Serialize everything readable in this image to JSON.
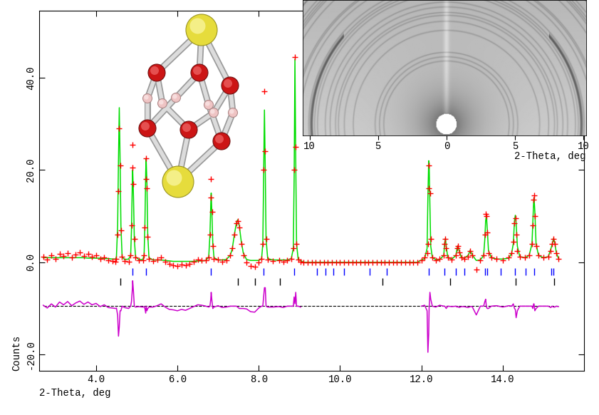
{
  "chart_data": {
    "type": "rietveld",
    "x_label": "2-Theta, deg",
    "y_label": "Counts",
    "xlim": [
      2.6,
      16.0
    ],
    "ylim": [
      -23.5,
      54.5
    ],
    "xticks": [
      {
        "value": 4,
        "label": "4.0"
      },
      {
        "value": 6,
        "label": "6.0"
      },
      {
        "value": 8,
        "label": "8.0"
      },
      {
        "value": 10,
        "label": "10.0"
      },
      {
        "value": 12,
        "label": "12.0"
      },
      {
        "value": 14,
        "label": "14.0"
      }
    ],
    "yticks": [
      {
        "value": -20,
        "label": "-20.0"
      },
      {
        "value": 0,
        "label": "0.0"
      },
      {
        "value": 20,
        "label": "20.0"
      },
      {
        "value": 40,
        "label": "40.0"
      }
    ],
    "x": [
      2.7,
      2.8,
      2.9,
      3.0,
      3.1,
      3.2,
      3.3,
      3.4,
      3.5,
      3.6,
      3.7,
      3.8,
      3.9,
      4.0,
      4.1,
      4.2,
      4.3,
      4.4,
      4.48,
      4.5,
      4.53,
      4.55,
      4.57,
      4.59,
      4.61,
      4.64,
      4.7,
      4.8,
      4.85,
      4.87,
      4.89,
      4.9,
      4.92,
      4.94,
      4.97,
      5.05,
      5.15,
      5.18,
      5.2,
      5.22,
      5.23,
      5.25,
      5.27,
      5.3,
      5.4,
      5.5,
      5.6,
      5.7,
      5.8,
      5.9,
      6.0,
      6.1,
      6.2,
      6.3,
      6.4,
      6.5,
      6.6,
      6.7,
      6.77,
      6.8,
      6.82,
      6.83,
      6.85,
      6.87,
      6.9,
      7.0,
      7.1,
      7.2,
      7.3,
      7.35,
      7.4,
      7.45,
      7.48,
      7.52,
      7.57,
      7.62,
      7.7,
      7.8,
      7.9,
      8.0,
      8.07,
      8.1,
      8.12,
      8.14,
      8.16,
      8.18,
      8.22,
      8.35,
      8.5,
      8.6,
      8.7,
      8.8,
      8.85,
      8.87,
      8.89,
      8.91,
      8.93,
      8.97,
      9.03,
      9.1,
      9.2,
      9.3,
      9.4,
      9.5,
      9.6,
      9.7,
      9.8,
      9.9,
      10.0,
      10.1,
      10.2,
      10.3,
      10.4,
      10.5,
      10.6,
      10.7,
      10.8,
      10.9,
      11.0,
      11.1,
      11.2,
      11.3,
      11.4,
      11.5,
      11.6,
      11.7,
      11.8,
      11.9,
      12.0,
      12.08,
      12.14,
      12.16,
      12.18,
      12.19,
      12.21,
      12.23,
      12.27,
      12.35,
      12.45,
      12.55,
      12.57,
      12.59,
      12.61,
      12.65,
      12.75,
      12.85,
      12.88,
      12.9,
      12.93,
      12.98,
      13.05,
      13.15,
      13.2,
      13.25,
      13.35,
      13.45,
      13.53,
      13.56,
      13.58,
      13.6,
      13.62,
      13.65,
      13.72,
      13.85,
      14.0,
      14.15,
      14.22,
      14.26,
      14.29,
      14.31,
      14.33,
      14.36,
      14.42,
      14.55,
      14.65,
      14.72,
      14.74,
      14.76,
      14.77,
      14.79,
      14.82,
      14.88,
      15.0,
      15.12,
      15.18,
      15.22,
      15.25,
      15.28,
      15.32,
      15.37
    ],
    "series": [
      {
        "type": "scatter",
        "color": "#ff0000",
        "marker": "plus",
        "values": [
          1.2,
          0.6,
          1.5,
          0.8,
          1.9,
          1.3,
          2.0,
          1.1,
          1.7,
          2.1,
          1.4,
          1.8,
          1.2,
          1.5,
          0.8,
          1.1,
          0.5,
          0.3,
          0.2,
          0.8,
          6.0,
          15.5,
          29.0,
          21.0,
          7.0,
          1.2,
          0.3,
          0.2,
          1.5,
          8.0,
          20.5,
          25.5,
          17.0,
          5.0,
          1.0,
          0.5,
          0.4,
          1.5,
          7.5,
          18.0,
          22.5,
          16.0,
          5.5,
          0.8,
          0.3,
          0.6,
          1.0,
          0.2,
          -0.4,
          -0.6,
          -0.8,
          -0.5,
          -0.7,
          -0.3,
          0.1,
          0.6,
          0.5,
          0.4,
          1.0,
          6.0,
          14.0,
          18.0,
          11.0,
          3.5,
          0.8,
          0.6,
          0.2,
          0.4,
          1.5,
          3.0,
          6.0,
          8.5,
          9.0,
          7.5,
          4.0,
          1.5,
          0.0,
          -0.8,
          -0.9,
          0.0,
          0.8,
          4.0,
          20.0,
          37.0,
          24.0,
          5.0,
          0.6,
          0.3,
          0.4,
          0.2,
          0.5,
          0.8,
          3.0,
          20.0,
          44.5,
          25.0,
          4.0,
          0.6,
          0.2,
          0.0,
          0.0,
          0.0,
          0.0,
          0.0,
          0.0,
          0.0,
          0.0,
          0.0,
          0.0,
          0.0,
          0.0,
          0.0,
          0.0,
          0.0,
          0.0,
          0.0,
          0.0,
          0.0,
          0.0,
          0.0,
          0.0,
          0.0,
          0.0,
          0.0,
          0.0,
          0.0,
          0.0,
          0.0,
          0.5,
          1.0,
          2.0,
          4.0,
          16.0,
          21.0,
          15.0,
          5.0,
          1.0,
          0.4,
          0.8,
          1.5,
          4.0,
          5.0,
          3.0,
          1.0,
          0.6,
          1.5,
          3.0,
          3.5,
          2.2,
          1.0,
          0.8,
          1.2,
          2.5,
          1.5,
          -1.5,
          0.5,
          1.5,
          6.0,
          10.5,
          10.0,
          6.5,
          2.0,
          1.0,
          0.8,
          0.5,
          1.0,
          2.0,
          4.5,
          8.5,
          9.5,
          6.0,
          2.5,
          1.2,
          1.0,
          1.5,
          4.0,
          8.0,
          13.5,
          14.5,
          10.0,
          3.5,
          1.5,
          1.0,
          1.2,
          2.5,
          4.0,
          5.0,
          4.0,
          2.0,
          0.8
        ]
      },
      {
        "type": "line",
        "color": "#00dd00",
        "line_style": "solid",
        "values": [
          1.0,
          1.0,
          1.0,
          1.0,
          1.0,
          1.0,
          1.0,
          1.0,
          1.0,
          1.0,
          1.0,
          0.9,
          0.9,
          0.9,
          0.9,
          0.8,
          0.8,
          0.7,
          0.7,
          1.2,
          8.0,
          22.0,
          33.5,
          22.0,
          8.0,
          1.2,
          0.6,
          0.7,
          1.5,
          7.0,
          17.0,
          20.0,
          14.0,
          5.0,
          1.2,
          0.6,
          0.6,
          1.6,
          8.0,
          19.5,
          22.5,
          17.0,
          6.0,
          1.0,
          0.5,
          0.5,
          0.5,
          0.4,
          0.3,
          0.2,
          0.2,
          0.2,
          0.2,
          0.2,
          0.2,
          0.3,
          0.3,
          0.4,
          1.2,
          6.0,
          12.5,
          15.0,
          10.0,
          4.0,
          1.0,
          0.5,
          0.5,
          0.6,
          1.5,
          3.0,
          6.0,
          8.5,
          9.2,
          8.0,
          4.5,
          2.0,
          0.6,
          0.4,
          0.4,
          0.4,
          0.8,
          4.0,
          18.0,
          33.0,
          20.0,
          5.0,
          0.8,
          0.5,
          0.5,
          0.5,
          0.5,
          0.8,
          3.0,
          18.0,
          44.0,
          22.0,
          4.0,
          0.6,
          0.4,
          0.0,
          0.0,
          0.0,
          0.0,
          0.0,
          0.0,
          0.0,
          0.0,
          0.0,
          0.0,
          0.0,
          0.0,
          0.0,
          0.0,
          0.0,
          0.0,
          0.0,
          0.0,
          0.0,
          0.0,
          0.0,
          0.0,
          0.0,
          0.0,
          0.0,
          0.0,
          0.0,
          0.0,
          0.0,
          0.5,
          0.8,
          3.0,
          14.0,
          22.0,
          21.5,
          12.0,
          3.5,
          1.0,
          0.6,
          0.6,
          1.5,
          4.0,
          5.2,
          3.5,
          1.0,
          0.7,
          1.5,
          3.2,
          3.6,
          2.5,
          1.1,
          0.9,
          1.5,
          2.6,
          1.6,
          0.4,
          0.5,
          1.5,
          5.0,
          9.0,
          10.2,
          7.0,
          2.5,
          1.0,
          0.7,
          0.7,
          0.9,
          2.0,
          4.0,
          9.0,
          10.2,
          8.5,
          3.5,
          1.2,
          1.0,
          1.5,
          4.0,
          8.5,
          13.0,
          14.0,
          11.0,
          4.0,
          1.5,
          1.0,
          1.2,
          2.8,
          4.0,
          5.2,
          4.2,
          2.0,
          0.9
        ]
      },
      {
        "type": "line",
        "color": "#cc00cc",
        "line_style": "solid",
        "values": [
          -9.3,
          -9.9,
          -9.0,
          -9.7,
          -8.6,
          -9.2,
          -8.5,
          -9.4,
          -8.8,
          -8.4,
          -9.1,
          -8.6,
          -9.2,
          -8.9,
          -9.6,
          -9.2,
          -9.8,
          -9.9,
          -10.0,
          -9.9,
          -11.5,
          -16.0,
          -14.0,
          -10.5,
          -10.5,
          -9.5,
          -9.8,
          -10.0,
          -9.5,
          -8.5,
          -6.0,
          -4.0,
          -6.5,
          -9.5,
          -9.7,
          -9.6,
          -9.7,
          -9.6,
          -10.0,
          -11.0,
          -9.5,
          -10.5,
          -10.0,
          -9.7,
          -9.7,
          -9.4,
          -9.0,
          -9.7,
          -10.2,
          -10.3,
          -10.5,
          -10.2,
          -10.4,
          -10.0,
          -9.6,
          -9.2,
          -9.3,
          -9.5,
          -9.7,
          -9.5,
          -8.0,
          -6.5,
          -8.5,
          -10.0,
          -9.7,
          -9.4,
          -9.8,
          -9.7,
          -9.5,
          -9.5,
          -9.5,
          -9.5,
          -9.7,
          -10.0,
          -10.0,
          -10.0,
          -10.1,
          -10.7,
          -10.8,
          -9.9,
          -9.5,
          -9.5,
          -7.5,
          -5.5,
          -5.5,
          -9.5,
          -9.7,
          -9.7,
          -9.6,
          -9.8,
          -9.5,
          -9.5,
          -9.5,
          -7.5,
          -9.0,
          -6.5,
          -9.5,
          -9.5,
          -9.7,
          null,
          null,
          null,
          null,
          null,
          null,
          null,
          null,
          null,
          null,
          null,
          null,
          null,
          null,
          null,
          null,
          null,
          null,
          null,
          null,
          null,
          null,
          null,
          null,
          null,
          null,
          null,
          null,
          null,
          -9.5,
          -9.3,
          -10.5,
          -19.5,
          -15.5,
          -10.0,
          -6.5,
          -8.0,
          -9.5,
          -9.7,
          -9.3,
          -9.5,
          -9.5,
          -9.7,
          -10.0,
          -9.5,
          -9.6,
          -9.5,
          -9.7,
          -9.6,
          -9.8,
          -9.6,
          -9.6,
          -9.8,
          -9.6,
          -9.6,
          -11.4,
          -9.5,
          -9.5,
          -8.5,
          -8.0,
          -9.7,
          -10.0,
          -10.0,
          -9.5,
          -9.4,
          -9.7,
          -9.4,
          -9.5,
          -9.0,
          -10.0,
          -10.2,
          -12.0,
          -10.5,
          -9.5,
          -9.5,
          -9.5,
          -9.5,
          -10.0,
          -9.0,
          -9.0,
          -10.5,
          -10.0,
          -9.5,
          -9.5,
          -9.5,
          -9.8,
          -9.5,
          -9.7,
          -9.7,
          -9.5,
          -9.6
        ]
      }
    ],
    "baseline": {
      "value": -9.5,
      "color": "#000000",
      "line_style": "dashed"
    },
    "reflections": [
      {
        "color": "#0000ff",
        "y": -2.0,
        "x": [
          4.9,
          5.22,
          6.82,
          8.12,
          8.87,
          9.44,
          9.65,
          9.83,
          10.09,
          10.73,
          11.15,
          12.19,
          12.57,
          12.85,
          13.06,
          13.57,
          13.62,
          13.95,
          14.3,
          14.56,
          14.77,
          15.2,
          15.25
        ]
      },
      {
        "color": "#000000",
        "y": -4.2,
        "x": [
          4.59,
          7.48,
          7.91,
          8.52,
          11.04,
          12.7,
          14.31,
          15.27
        ]
      }
    ],
    "inset": {
      "type": "image",
      "x_label": "2-Theta, deg",
      "xlim": [
        -10.5,
        10.2
      ],
      "ylim": [
        -0.8,
        9.0
      ],
      "xticks": [
        {
          "value": -10,
          "label": "10"
        },
        {
          "value": -5,
          "label": "5"
        },
        0,
        5,
        10
      ],
      "tick_labels": "x"
    }
  }
}
